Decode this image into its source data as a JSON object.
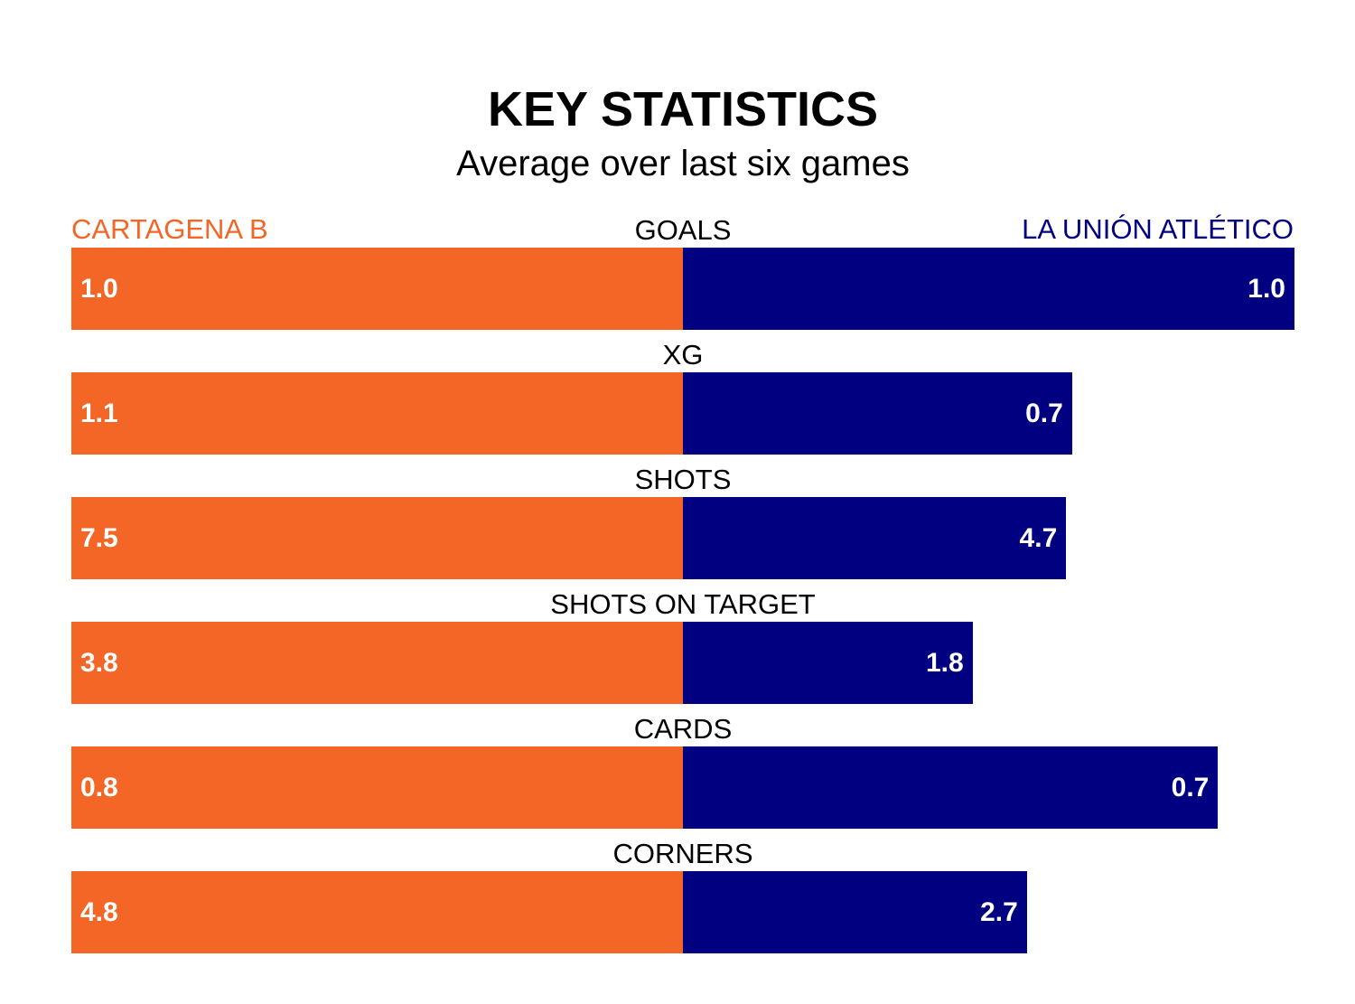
{
  "chart_data": {
    "type": "bar",
    "title": "KEY STATISTICS",
    "subtitle": "Average over last six games",
    "categories": [
      "GOALS",
      "XG",
      "SHOTS",
      "SHOTS ON TARGET",
      "CARDS",
      "CORNERS"
    ],
    "series": [
      {
        "name": "CARTAGENA B",
        "color": "#f46625",
        "values": [
          1.0,
          1.1,
          7.5,
          3.8,
          0.8,
          4.8
        ],
        "labels": [
          "1.0",
          "1.1",
          "7.5",
          "3.8",
          "0.8",
          "4.8"
        ]
      },
      {
        "name": "LA UNIÓN ATLÉTICO",
        "color": "#000080",
        "values": [
          1.0,
          0.7,
          4.7,
          1.8,
          0.7,
          2.7
        ],
        "labels": [
          "1.0",
          "0.7",
          "4.7",
          "1.8",
          "0.7",
          "2.7"
        ]
      }
    ],
    "grid": false
  }
}
